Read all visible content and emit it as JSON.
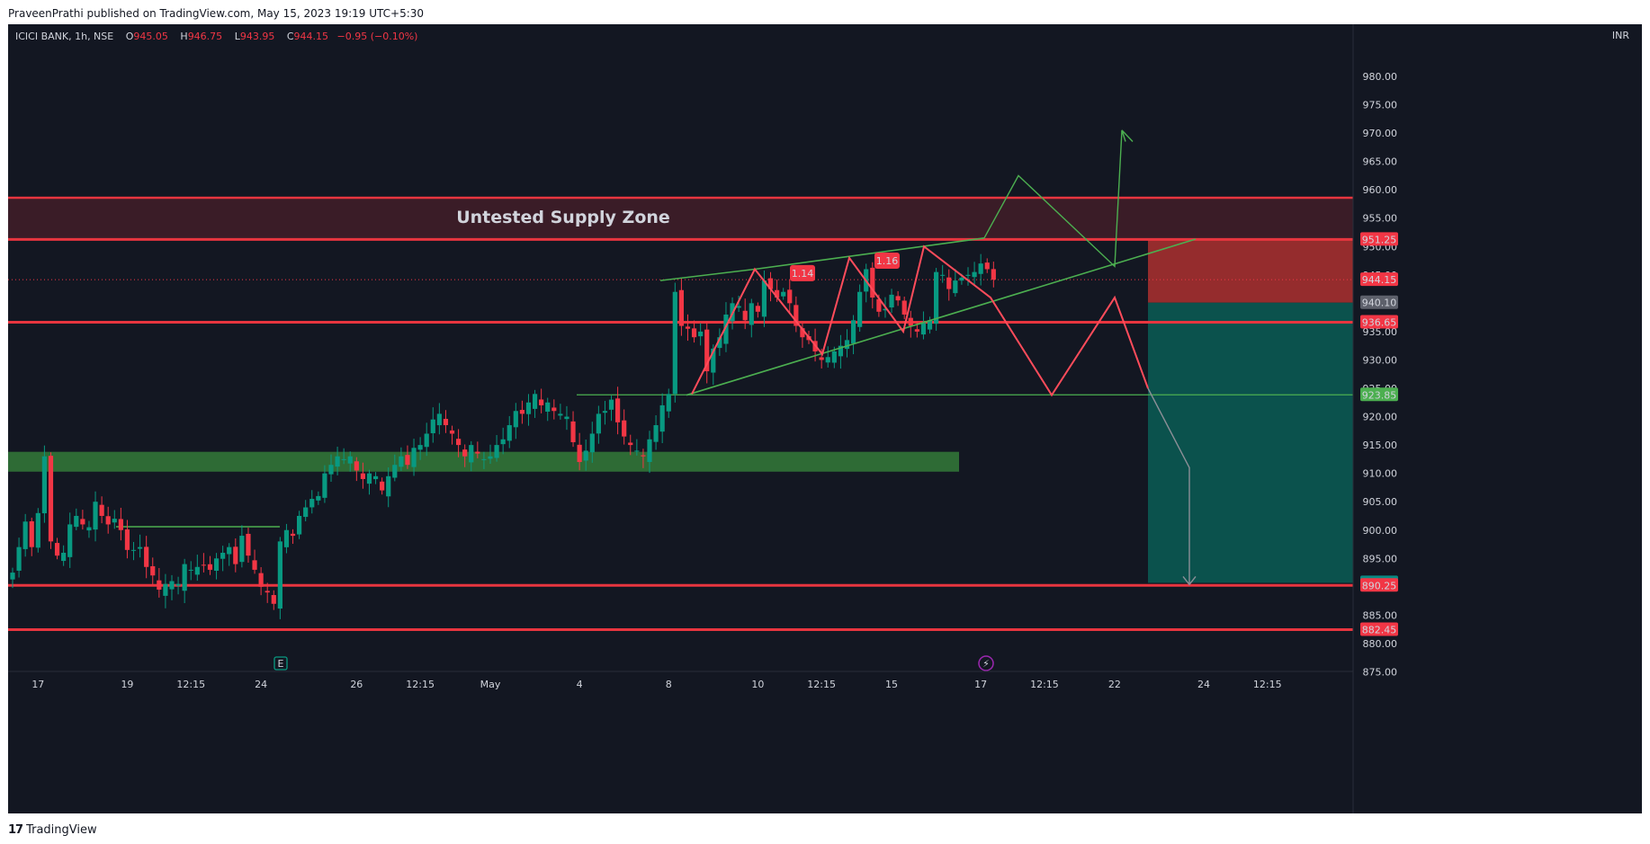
{
  "header": {
    "published": "PraveenPrathi published on TradingView.com, May 15, 2023 19:19 UTC+5:30"
  },
  "legend": {
    "symbol": "ICICI BANK, 1h, NSE",
    "open_label": "O",
    "open": "945.05",
    "high_label": "H",
    "high": "946.75",
    "low_label": "L",
    "low": "943.95",
    "close_label": "C",
    "close": "944.15",
    "change": "−0.95 (−0.10%)"
  },
  "footer": {
    "logo_mark": "17",
    "brand": "TradingView"
  },
  "colors": {
    "background": "#131722",
    "bull": "#089981",
    "bear": "#f23645",
    "red_line": "#e8353f",
    "green_line": "#4caf50",
    "supply_zone": "#3a1c27",
    "demand_zone": "#2e6b35",
    "target_box": "#0b5550",
    "stop_box": "#9c2d2e"
  },
  "chart_data": {
    "type": "candlestick",
    "currency": "INR",
    "y_axis": {
      "ylim": [
        869.5,
        985.5
      ],
      "ticks": [
        "875.00",
        "880.00",
        "885.00",
        "890.00",
        "895.00",
        "900.00",
        "905.00",
        "910.00",
        "915.00",
        "920.00",
        "925.00",
        "930.00",
        "935.00",
        "940.00",
        "945.00",
        "950.00",
        "955.00",
        "960.00",
        "965.00",
        "970.00",
        "975.00",
        "980.00"
      ]
    },
    "x_axis": {
      "ticks": [
        {
          "label": "17",
          "bar": 4
        },
        {
          "label": "19",
          "bar": 18
        },
        {
          "label": "12:15",
          "bar": 28
        },
        {
          "label": "24",
          "bar": 39
        },
        {
          "label": "26",
          "bar": 54
        },
        {
          "label": "12:15",
          "bar": 64
        },
        {
          "label": "May",
          "bar": 75
        },
        {
          "label": "4",
          "bar": 89
        },
        {
          "label": "8",
          "bar": 103
        },
        {
          "label": "10",
          "bar": 117
        },
        {
          "label": "12:15",
          "bar": 127
        },
        {
          "label": "15",
          "bar": 138
        },
        {
          "label": "17",
          "bar": 152
        },
        {
          "label": "12:15",
          "bar": 162
        },
        {
          "label": "22",
          "bar": 173
        },
        {
          "label": "24",
          "bar": 187
        },
        {
          "label": "12:15",
          "bar": 197
        }
      ]
    },
    "candles_close": [
      892.5,
      897.0,
      901.5,
      897.0,
      903.0,
      913.0,
      898.0,
      895.5,
      896.0,
      901.0,
      902.5,
      901.0,
      900.5,
      905.0,
      902.5,
      901.0,
      902.0,
      900.0,
      896.5,
      896.5,
      897.0,
      893.5,
      892.0,
      889.5,
      890.5,
      891.0,
      890.5,
      894.0,
      893.0,
      893.5,
      893.8,
      893.0,
      895.0,
      896.0,
      897.0,
      894.0,
      899.0,
      895.5,
      893.0,
      890.0,
      889.0,
      887.0,
      898.0,
      900.0,
      899.0,
      902.5,
      904.0,
      905.5,
      906.0,
      910.0,
      911.5,
      913.0,
      912.5,
      913.0,
      910.5,
      909.0,
      910.0,
      909.5,
      907.0,
      909.5,
      911.5,
      913.0,
      911.5,
      914.5,
      915.0,
      917.0,
      919.5,
      920.5,
      918.5,
      917.0,
      915.0,
      913.0,
      915.0,
      913.5,
      912.5,
      913.0,
      915.0,
      916.0,
      918.5,
      921.0,
      920.5,
      922.5,
      924.0,
      922.0,
      922.5,
      921.0,
      920.5,
      920.0,
      915.5,
      912.0,
      914.0,
      917.0,
      920.5,
      921.0,
      923.0,
      919.0,
      916.5,
      915.0,
      914.0,
      913.0,
      916.0,
      918.5,
      922.0,
      924.0,
      942.0,
      936.0,
      935.5,
      934.0,
      935.0,
      928.0,
      932.0,
      934.0,
      938.0,
      940.0,
      939.5,
      937.0,
      940.0,
      938.5,
      944.0,
      942.5,
      941.0,
      942.0,
      940.0,
      936.0,
      934.0,
      933.5,
      931.5,
      930.0,
      930.5,
      931.5,
      932.5,
      933.5,
      937.0,
      942.0,
      946.0,
      941.0,
      938.5,
      939.0,
      941.5,
      940.5,
      938.0,
      936.0,
      935.0,
      936.5,
      937.0,
      945.5,
      945.0,
      942.5,
      944.0,
      944.5,
      945.0,
      945.5,
      947.0,
      946.0,
      944.15
    ],
    "series_notes": "Hourly OHLC candles from Apr 17 to May 15, 2023 (values estimated from the chart)",
    "price_labels": [
      {
        "value": "951.25",
        "price": 951.25,
        "color": "#f23645"
      },
      {
        "value": "944.15",
        "price": 944.15,
        "color": "#f23645"
      },
      {
        "value": "940.10",
        "price": 940.1,
        "color": "#5d606b"
      },
      {
        "value": "936.65",
        "price": 936.65,
        "color": "#f23645"
      },
      {
        "value": "923.85",
        "price": 923.85,
        "color": "#4caf50"
      },
      {
        "value": "890.70",
        "price": 890.7,
        "color": "#0a8a83"
      },
      {
        "value": "890.25",
        "price": 890.25,
        "color": "#f23645"
      },
      {
        "value": "882.45",
        "price": 882.45,
        "color": "#f23645"
      }
    ],
    "supply_zone": {
      "label": "Untested Supply Zone",
      "top": 958.6,
      "bottom": 951.25
    },
    "demand_zone": {
      "top": 913.8,
      "bottom": 910.3
    },
    "horizontal_lines": [
      951.25,
      936.65,
      890.25,
      882.45
    ],
    "position_box": {
      "entry": 940.1,
      "stop": 951.25,
      "target": 890.7
    },
    "pattern_labels": [
      "1.14",
      "1.16"
    ],
    "event_markers": [
      "E",
      "⚡"
    ]
  }
}
